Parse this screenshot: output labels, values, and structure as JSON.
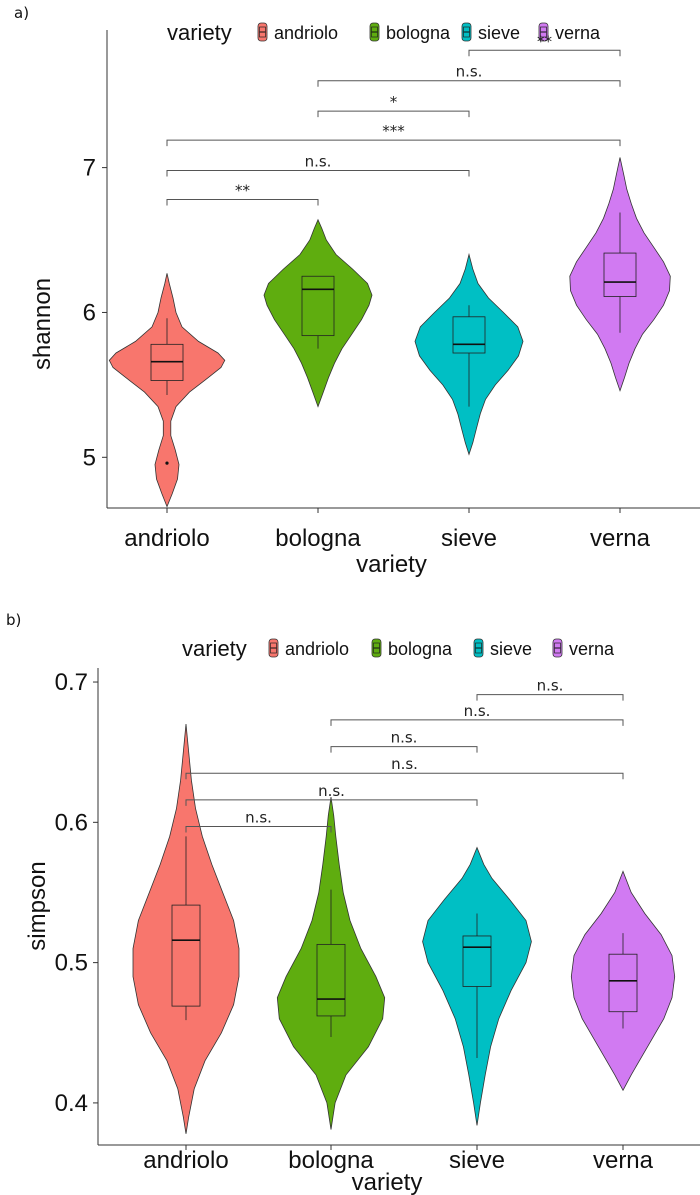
{
  "colors": {
    "andriolo": "#F8766D",
    "bologna": "#5FAD0F",
    "sieve": "#00BFC4",
    "verna": "#D17AF2"
  },
  "chart_data": [
    {
      "panel_label": "a)",
      "type": "violin",
      "title": "",
      "xlabel": "variety",
      "ylabel": "shannon",
      "ylim": [
        4.65,
        7.95
      ],
      "yticks": [
        5,
        6,
        7
      ],
      "categories": [
        "andriolo",
        "bologna",
        "sieve",
        "verna"
      ],
      "legend": {
        "title": "variety",
        "position": "top",
        "entries": [
          "andriolo",
          "bologna",
          "sieve",
          "verna"
        ]
      },
      "grid": false,
      "series": [
        {
          "category": "andriolo",
          "violin_range": [
            4.66,
            6.27
          ],
          "density": [
            [
              4.66,
              0
            ],
            [
              4.75,
              0.07
            ],
            [
              4.85,
              0.14
            ],
            [
              4.95,
              0.16
            ],
            [
              5.05,
              0.11
            ],
            [
              5.15,
              0.05
            ],
            [
              5.25,
              0.05
            ],
            [
              5.35,
              0.12
            ],
            [
              5.45,
              0.3
            ],
            [
              5.55,
              0.55
            ],
            [
              5.62,
              0.72
            ],
            [
              5.67,
              0.77
            ],
            [
              5.72,
              0.68
            ],
            [
              5.8,
              0.42
            ],
            [
              5.9,
              0.2
            ],
            [
              6.0,
              0.12
            ],
            [
              6.1,
              0.08
            ],
            [
              6.2,
              0.03
            ],
            [
              6.27,
              0
            ]
          ],
          "box": {
            "min": 5.43,
            "q1": 5.53,
            "median": 5.66,
            "q3": 5.78,
            "max": 5.96
          },
          "outliers": [
            4.96
          ]
        },
        {
          "category": "bologna",
          "violin_range": [
            5.35,
            6.64
          ],
          "density": [
            [
              5.35,
              0
            ],
            [
              5.45,
              0.07
            ],
            [
              5.55,
              0.14
            ],
            [
              5.65,
              0.22
            ],
            [
              5.75,
              0.32
            ],
            [
              5.85,
              0.45
            ],
            [
              5.95,
              0.58
            ],
            [
              6.05,
              0.68
            ],
            [
              6.12,
              0.72
            ],
            [
              6.2,
              0.66
            ],
            [
              6.3,
              0.46
            ],
            [
              6.4,
              0.24
            ],
            [
              6.5,
              0.11
            ],
            [
              6.58,
              0.05
            ],
            [
              6.64,
              0
            ]
          ],
          "box": {
            "min": 5.75,
            "q1": 5.84,
            "median": 6.16,
            "q3": 6.25,
            "max": 6.25
          },
          "outliers": []
        },
        {
          "category": "sieve",
          "violin_range": [
            5.02,
            6.4
          ],
          "density": [
            [
              5.02,
              0
            ],
            [
              5.1,
              0.05
            ],
            [
              5.2,
              0.1
            ],
            [
              5.3,
              0.15
            ],
            [
              5.4,
              0.22
            ],
            [
              5.5,
              0.35
            ],
            [
              5.6,
              0.52
            ],
            [
              5.7,
              0.66
            ],
            [
              5.8,
              0.72
            ],
            [
              5.9,
              0.65
            ],
            [
              6.0,
              0.46
            ],
            [
              6.1,
              0.26
            ],
            [
              6.2,
              0.12
            ],
            [
              6.3,
              0.05
            ],
            [
              6.4,
              0
            ]
          ],
          "box": {
            "min": 5.35,
            "q1": 5.72,
            "median": 5.78,
            "q3": 5.97,
            "max": 6.05
          },
          "outliers": []
        },
        {
          "category": "verna",
          "violin_range": [
            5.46,
            7.07
          ],
          "density": [
            [
              5.46,
              0
            ],
            [
              5.55,
              0.06
            ],
            [
              5.65,
              0.12
            ],
            [
              5.75,
              0.2
            ],
            [
              5.85,
              0.3
            ],
            [
              5.95,
              0.45
            ],
            [
              6.05,
              0.58
            ],
            [
              6.15,
              0.66
            ],
            [
              6.25,
              0.67
            ],
            [
              6.35,
              0.58
            ],
            [
              6.45,
              0.45
            ],
            [
              6.55,
              0.32
            ],
            [
              6.65,
              0.22
            ],
            [
              6.75,
              0.15
            ],
            [
              6.85,
              0.09
            ],
            [
              6.95,
              0.05
            ],
            [
              7.07,
              0
            ]
          ],
          "box": {
            "min": 5.86,
            "q1": 6.11,
            "median": 6.21,
            "q3": 6.41,
            "max": 6.69
          },
          "outliers": []
        }
      ],
      "comparisons": [
        {
          "from": "andriolo",
          "to": "bologna",
          "label": "**",
          "y": 6.78
        },
        {
          "from": "andriolo",
          "to": "sieve",
          "label": "n.s.",
          "y": 6.98
        },
        {
          "from": "andriolo",
          "to": "verna",
          "label": "***",
          "y": 7.19
        },
        {
          "from": "bologna",
          "to": "sieve",
          "label": "*",
          "y": 7.39
        },
        {
          "from": "bologna",
          "to": "verna",
          "label": "n.s.",
          "y": 7.6
        },
        {
          "from": "sieve",
          "to": "verna",
          "label": "**",
          "y": 7.81
        }
      ]
    },
    {
      "panel_label": "b)",
      "type": "violin",
      "title": "",
      "xlabel": "variety",
      "ylabel": "simpson",
      "ylim": [
        0.37,
        0.71
      ],
      "yticks": [
        0.4,
        0.5,
        0.6,
        0.7
      ],
      "categories": [
        "andriolo",
        "bologna",
        "sieve",
        "verna"
      ],
      "legend": {
        "title": "variety",
        "position": "top",
        "entries": [
          "andriolo",
          "bologna",
          "sieve",
          "verna"
        ]
      },
      "grid": false,
      "series": [
        {
          "category": "andriolo",
          "violin_range": [
            0.378,
            0.67
          ],
          "density": [
            [
              0.378,
              0
            ],
            [
              0.39,
              0.04
            ],
            [
              0.41,
              0.12
            ],
            [
              0.43,
              0.28
            ],
            [
              0.45,
              0.52
            ],
            [
              0.47,
              0.7
            ],
            [
              0.49,
              0.78
            ],
            [
              0.51,
              0.78
            ],
            [
              0.53,
              0.7
            ],
            [
              0.55,
              0.54
            ],
            [
              0.57,
              0.38
            ],
            [
              0.59,
              0.24
            ],
            [
              0.61,
              0.14
            ],
            [
              0.63,
              0.08
            ],
            [
              0.65,
              0.04
            ],
            [
              0.67,
              0
            ]
          ],
          "box": {
            "min": 0.459,
            "q1": 0.469,
            "median": 0.516,
            "q3": 0.541,
            "max": 0.59
          },
          "outliers": []
        },
        {
          "category": "bologna",
          "violin_range": [
            0.381,
            0.618
          ],
          "density": [
            [
              0.381,
              0
            ],
            [
              0.4,
              0.06
            ],
            [
              0.42,
              0.22
            ],
            [
              0.44,
              0.55
            ],
            [
              0.46,
              0.76
            ],
            [
              0.475,
              0.79
            ],
            [
              0.49,
              0.66
            ],
            [
              0.51,
              0.44
            ],
            [
              0.53,
              0.28
            ],
            [
              0.55,
              0.18
            ],
            [
              0.57,
              0.12
            ],
            [
              0.59,
              0.07
            ],
            [
              0.605,
              0.04
            ],
            [
              0.618,
              0
            ]
          ],
          "box": {
            "min": 0.447,
            "q1": 0.462,
            "median": 0.474,
            "q3": 0.513,
            "max": 0.552
          },
          "outliers": []
        },
        {
          "category": "sieve",
          "violin_range": [
            0.384,
            0.582
          ],
          "density": [
            [
              0.384,
              0
            ],
            [
              0.4,
              0.05
            ],
            [
              0.42,
              0.12
            ],
            [
              0.44,
              0.2
            ],
            [
              0.46,
              0.32
            ],
            [
              0.48,
              0.5
            ],
            [
              0.5,
              0.72
            ],
            [
              0.515,
              0.8
            ],
            [
              0.53,
              0.72
            ],
            [
              0.545,
              0.48
            ],
            [
              0.56,
              0.22
            ],
            [
              0.57,
              0.1
            ],
            [
              0.582,
              0
            ]
          ],
          "box": {
            "min": 0.432,
            "q1": 0.483,
            "median": 0.511,
            "q3": 0.519,
            "max": 0.535
          },
          "outliers": []
        },
        {
          "category": "verna",
          "violin_range": [
            0.409,
            0.565
          ],
          "density": [
            [
              0.409,
              0
            ],
            [
              0.42,
              0.12
            ],
            [
              0.44,
              0.36
            ],
            [
              0.46,
              0.6
            ],
            [
              0.475,
              0.72
            ],
            [
              0.49,
              0.76
            ],
            [
              0.505,
              0.72
            ],
            [
              0.52,
              0.56
            ],
            [
              0.535,
              0.32
            ],
            [
              0.55,
              0.12
            ],
            [
              0.565,
              0
            ]
          ],
          "box": {
            "min": 0.453,
            "q1": 0.465,
            "median": 0.487,
            "q3": 0.506,
            "max": 0.521
          },
          "outliers": []
        }
      ],
      "comparisons": [
        {
          "from": "andriolo",
          "to": "bologna",
          "label": "n.s.",
          "y": 0.597
        },
        {
          "from": "andriolo",
          "to": "sieve",
          "label": "n.s.",
          "y": 0.616
        },
        {
          "from": "andriolo",
          "to": "verna",
          "label": "n.s.",
          "y": 0.635
        },
        {
          "from": "bologna",
          "to": "sieve",
          "label": "n.s.",
          "y": 0.654
        },
        {
          "from": "bologna",
          "to": "verna",
          "label": "n.s.",
          "y": 0.673
        },
        {
          "from": "sieve",
          "to": "verna",
          "label": "n.s.",
          "y": 0.691
        }
      ]
    }
  ]
}
